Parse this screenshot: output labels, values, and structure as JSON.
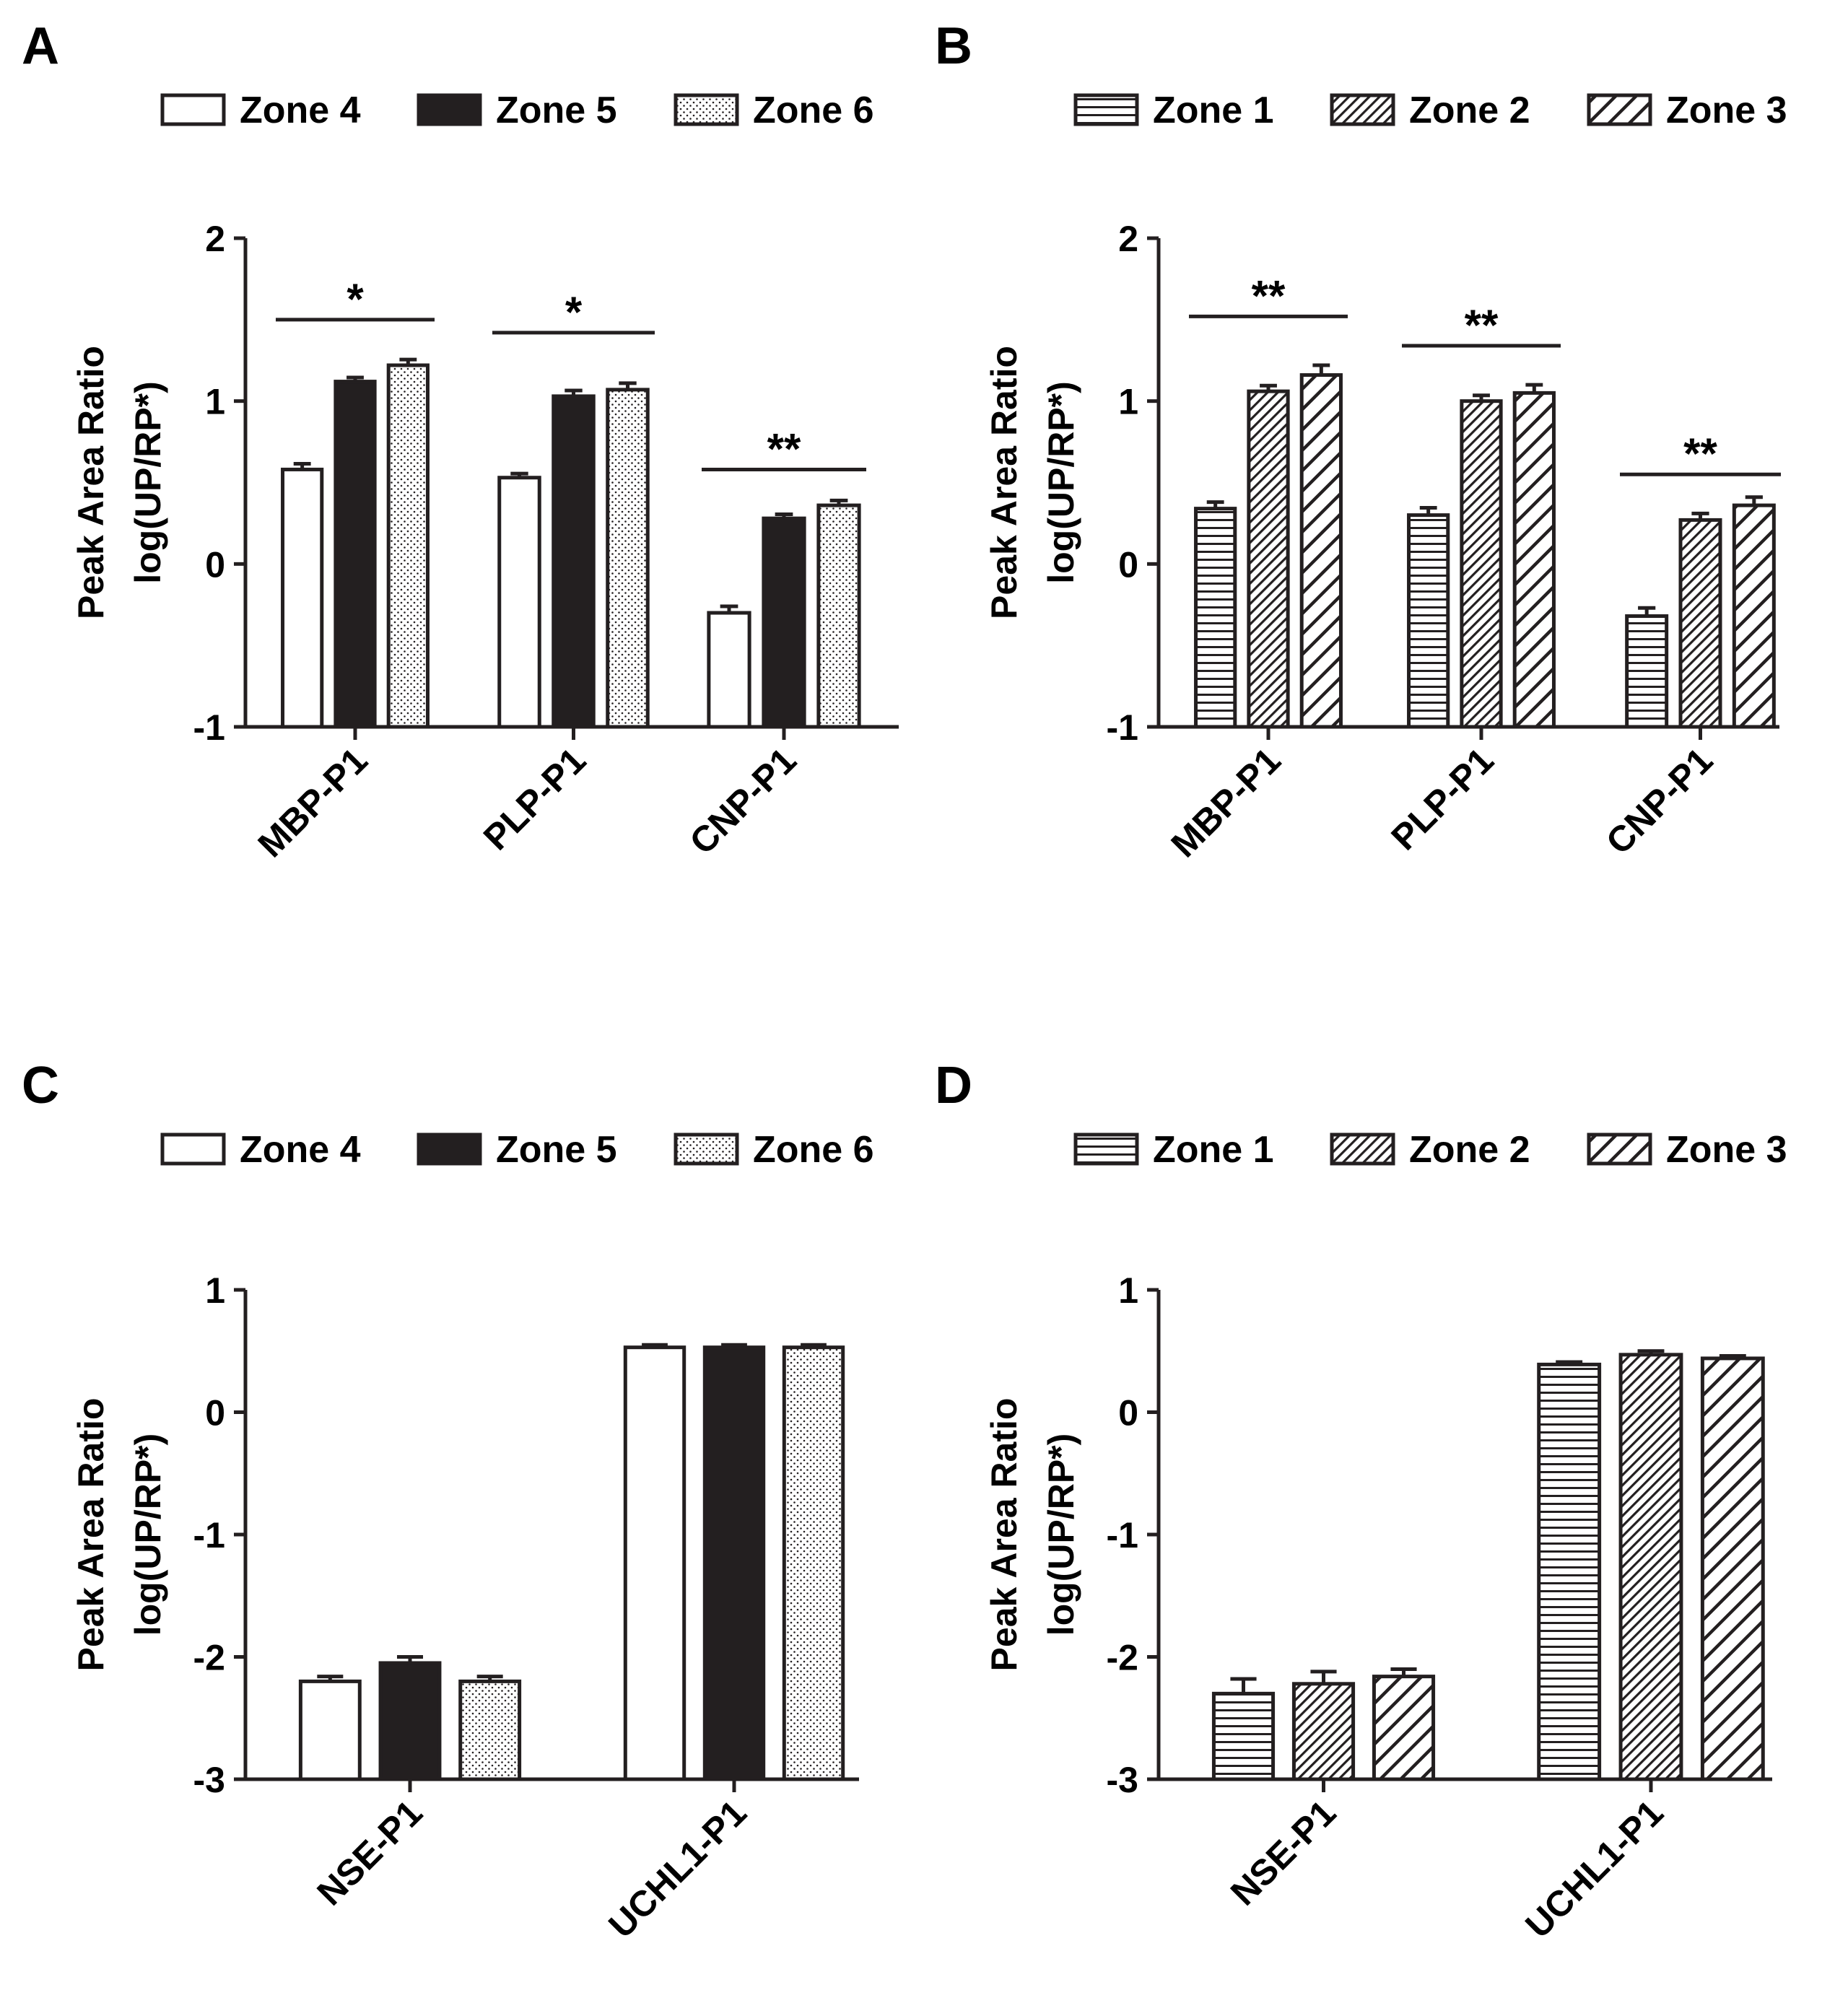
{
  "colors": {
    "ink": "#231f20",
    "white": "#ffffff"
  },
  "chart_data": [
    {
      "panel_label": "A",
      "type": "bar",
      "ylabel": [
        "Peak Area Ratio",
        "log(UP/RP*)"
      ],
      "ylim": [
        -1,
        2
      ],
      "yticks": [
        -1,
        0,
        1,
        2
      ],
      "categories": [
        "MBP-P1",
        "PLP-P1",
        "CNP-P1"
      ],
      "legend": {
        "placement": "top"
      },
      "series": [
        {
          "name": "Zone 4",
          "pattern": "open",
          "values": [
            0.58,
            0.53,
            -0.3
          ],
          "errors": [
            0.035,
            0.025,
            0.04
          ]
        },
        {
          "name": "Zone 5",
          "pattern": "solid",
          "values": [
            1.12,
            1.03,
            0.28
          ],
          "errors": [
            0.025,
            0.035,
            0.025
          ]
        },
        {
          "name": "Zone 6",
          "pattern": "dots",
          "values": [
            1.22,
            1.07,
            0.36
          ],
          "errors": [
            0.035,
            0.04,
            0.03
          ]
        }
      ],
      "annotations": [
        {
          "text": "*",
          "category": 0,
          "y": 1.5
        },
        {
          "text": "*",
          "category": 1,
          "y": 1.42
        },
        {
          "text": "**",
          "category": 2,
          "y": 0.58
        }
      ]
    },
    {
      "panel_label": "B",
      "type": "bar",
      "ylabel": [
        "Peak Area Ratio",
        "log(UP/RP*)"
      ],
      "ylim": [
        -1,
        2
      ],
      "yticks": [
        -1,
        0,
        1,
        2
      ],
      "categories": [
        "MBP-P1",
        "PLP-P1",
        "CNP-P1"
      ],
      "legend": {
        "placement": "top"
      },
      "series": [
        {
          "name": "Zone 1",
          "pattern": "horizontal",
          "values": [
            0.34,
            0.3,
            -0.32
          ],
          "errors": [
            0.04,
            0.045,
            0.05
          ]
        },
        {
          "name": "Zone 2",
          "pattern": "diagonal-dense",
          "values": [
            1.06,
            1.0,
            0.27
          ],
          "errors": [
            0.035,
            0.035,
            0.04
          ]
        },
        {
          "name": "Zone 3",
          "pattern": "diagonal",
          "values": [
            1.16,
            1.05,
            0.36
          ],
          "errors": [
            0.06,
            0.05,
            0.05
          ]
        }
      ],
      "annotations": [
        {
          "text": "**",
          "category": 0,
          "y": 1.52
        },
        {
          "text": "**",
          "category": 1,
          "y": 1.34
        },
        {
          "text": "**",
          "category": 2,
          "y": 0.55
        }
      ]
    },
    {
      "panel_label": "C",
      "type": "bar",
      "ylabel": [
        "Peak Area Ratio",
        "log(UP/RP*)"
      ],
      "ylim": [
        -3,
        1
      ],
      "yticks": [
        -3,
        -2,
        -1,
        0,
        1
      ],
      "categories": [
        "NSE-P1",
        "UCHL1-P1"
      ],
      "legend": {
        "placement": "top"
      },
      "series": [
        {
          "name": "Zone 4",
          "pattern": "open",
          "values": [
            -2.2,
            0.53
          ],
          "errors": [
            0.04,
            0.02
          ]
        },
        {
          "name": "Zone 5",
          "pattern": "solid",
          "values": [
            -2.05,
            0.53
          ],
          "errors": [
            0.05,
            0.02
          ]
        },
        {
          "name": "Zone 6",
          "pattern": "dots",
          "values": [
            -2.2,
            0.53
          ],
          "errors": [
            0.04,
            0.02
          ]
        }
      ],
      "annotations": []
    },
    {
      "panel_label": "D",
      "type": "bar",
      "ylabel": [
        "Peak Area Ratio",
        "log(UP/RP*)"
      ],
      "ylim": [
        -3,
        1
      ],
      "yticks": [
        -3,
        -2,
        -1,
        0,
        1
      ],
      "categories": [
        "NSE-P1",
        "UCHL1-P1"
      ],
      "legend": {
        "placement": "top"
      },
      "series": [
        {
          "name": "Zone 1",
          "pattern": "horizontal",
          "values": [
            -2.3,
            0.39
          ],
          "errors": [
            0.12,
            0.02
          ]
        },
        {
          "name": "Zone 2",
          "pattern": "diagonal-dense",
          "values": [
            -2.22,
            0.47
          ],
          "errors": [
            0.1,
            0.03
          ]
        },
        {
          "name": "Zone 3",
          "pattern": "diagonal",
          "values": [
            -2.16,
            0.44
          ],
          "errors": [
            0.06,
            0.02
          ]
        }
      ],
      "annotations": []
    }
  ]
}
